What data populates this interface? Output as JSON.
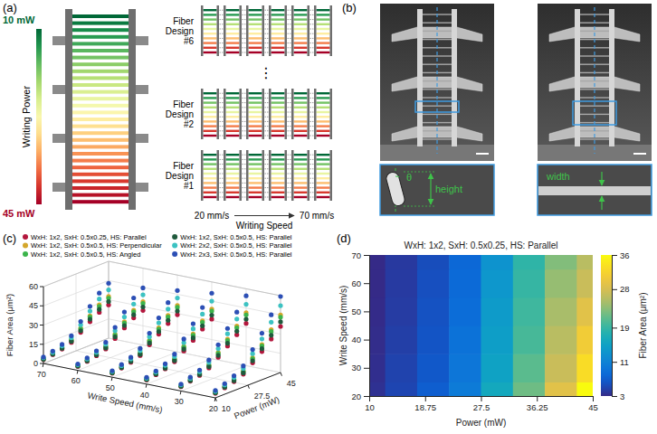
{
  "panel_a": {
    "label": "(a)",
    "power": {
      "title": "Writing Power",
      "range": [
        10,
        45
      ],
      "labels": [
        {
          "value": 10,
          "label": "10 mW"
        },
        {
          "value": 45,
          "label": "45 mW"
        }
      ]
    },
    "designs": [
      "Fiber Design #6",
      "Fiber Design #2",
      "Fiber Design #1"
    ],
    "ellipsis": "⋮",
    "speed": {
      "title": "Writing Speed",
      "labels": [
        {
          "value": 20,
          "label": "20 mm/s"
        },
        {
          "value": 70,
          "label": "70 mm/s"
        }
      ]
    }
  },
  "panel_b": {
    "label": "(b)",
    "labels": {
      "height": "height",
      "angle": "θ",
      "width": "width"
    }
  },
  "chart_data": [
    {
      "type": "scatter3d",
      "panel_label": "(c)",
      "x_label": "Write Speed (mm/s)",
      "y_label": "Power (mW)",
      "z_label": "Fiber Area (μm²)",
      "xlim": [
        70,
        20
      ],
      "xticks": [
        70,
        60,
        50,
        40,
        30,
        20
      ],
      "ylim": [
        10,
        45
      ],
      "yticks": [
        10,
        27.5,
        45
      ],
      "zlim": [
        0,
        60
      ],
      "zticks": [
        0,
        15,
        30,
        45,
        60
      ],
      "grid": true,
      "legend": "top",
      "marker": "circle",
      "x": [
        20,
        20,
        20,
        20,
        20,
        20,
        20,
        20,
        30,
        30,
        30,
        30,
        30,
        30,
        30,
        30,
        40,
        40,
        40,
        40,
        40,
        40,
        40,
        40,
        50,
        50,
        50,
        50,
        50,
        50,
        50,
        50,
        60,
        60,
        60,
        60,
        60,
        60,
        60,
        60,
        70,
        70,
        70,
        70,
        70,
        70,
        70,
        70
      ],
      "y": [
        10,
        15,
        20,
        25,
        30,
        35,
        40,
        45,
        10,
        15,
        20,
        25,
        30,
        35,
        40,
        45,
        10,
        15,
        20,
        25,
        30,
        35,
        40,
        45,
        10,
        15,
        20,
        25,
        30,
        35,
        40,
        45,
        10,
        15,
        20,
        25,
        30,
        35,
        40,
        45,
        10,
        15,
        20,
        25,
        30,
        35,
        40,
        45
      ],
      "series": [
        {
          "name": "WxH: 1x2, SxH: 0.5x0.25, HS: Parallel",
          "color": "#b3173d",
          "z": [
            3.5,
            5.0,
            7.0,
            10.0,
            16.0,
            22.0,
            29.0,
            36.0,
            3.3,
            4.8,
            6.5,
            9.5,
            15.0,
            21.0,
            27.0,
            33.0,
            3.2,
            4.5,
            6.2,
            9.0,
            14.5,
            20.0,
            26.0,
            31.0,
            3.1,
            4.3,
            6.0,
            8.5,
            14.0,
            19.5,
            25.0,
            29.0,
            3.0,
            4.2,
            5.8,
            8.2,
            13.5,
            19.0,
            24.0,
            27.0,
            3.0,
            4.1,
            5.6,
            8.0,
            13.0,
            18.5,
            23.0,
            26.0
          ]
        },
        {
          "name": "WxH: 1x2, SxH: 0.5x0.5, HS: Perpendicular",
          "color": "#d4a72c",
          "z": [
            4.4,
            6.3,
            8.8,
            12.5,
            20.0,
            27.5,
            36.3,
            45.0,
            4.1,
            6.0,
            8.1,
            11.9,
            18.8,
            26.3,
            33.8,
            41.3,
            4.0,
            5.6,
            7.8,
            11.3,
            18.1,
            25.0,
            32.5,
            38.8,
            3.9,
            5.4,
            7.5,
            10.6,
            17.5,
            24.4,
            31.3,
            36.3,
            3.8,
            5.3,
            7.3,
            10.3,
            16.9,
            23.8,
            30.0,
            33.8,
            3.8,
            5.1,
            7.0,
            10.0,
            16.3,
            23.1,
            28.8,
            32.5
          ]
        },
        {
          "name": "WxH: 1x2, SxH: 0.5x0.5, HS: Angled",
          "color": "#3cb44b",
          "z": [
            4.2,
            6.0,
            8.4,
            12.0,
            19.2,
            26.4,
            34.8,
            43.2,
            4.0,
            5.8,
            7.8,
            11.4,
            18.0,
            25.2,
            32.4,
            39.6,
            3.8,
            5.4,
            7.4,
            10.8,
            17.4,
            24.0,
            31.2,
            37.2,
            3.7,
            5.2,
            7.2,
            10.2,
            16.8,
            23.4,
            30.0,
            34.8,
            3.6,
            5.0,
            7.0,
            9.8,
            16.2,
            22.8,
            28.8,
            32.4,
            3.6,
            4.9,
            6.7,
            9.6,
            15.6,
            22.2,
            27.6,
            31.2
          ]
        },
        {
          "name": "WxH: 1x2, SxH: 0.5x0.5, HS: Parallel",
          "color": "#1f5a3c",
          "z": [
            3.9,
            5.5,
            7.7,
            11.0,
            17.6,
            24.2,
            31.9,
            39.6,
            3.6,
            5.3,
            7.2,
            10.5,
            16.5,
            23.1,
            29.7,
            36.3,
            3.5,
            5.0,
            6.8,
            9.9,
            16.0,
            22.0,
            28.6,
            34.1,
            3.4,
            4.7,
            6.6,
            9.4,
            15.4,
            21.5,
            27.5,
            31.9,
            3.3,
            4.6,
            6.4,
            9.0,
            14.9,
            20.9,
            26.4,
            29.7,
            3.3,
            4.5,
            6.2,
            8.8,
            14.3,
            20.4,
            25.3,
            28.6
          ]
        },
        {
          "name": "WxH: 2x2, SxH: 0.5x0.5, HS: Parallel",
          "color": "#3cc2c2",
          "z": [
            5.1,
            7.3,
            10.2,
            14.5,
            23.2,
            31.9,
            42.1,
            52.2,
            4.8,
            7.0,
            9.4,
            13.8,
            21.8,
            30.5,
            39.2,
            47.9,
            4.6,
            6.5,
            9.0,
            13.1,
            21.0,
            29.0,
            37.7,
            45.0,
            4.5,
            6.2,
            8.7,
            12.3,
            20.3,
            28.3,
            36.3,
            42.1,
            4.4,
            6.1,
            8.4,
            11.9,
            19.6,
            27.6,
            34.8,
            39.2,
            4.4,
            5.9,
            8.1,
            11.6,
            18.9,
            26.8,
            33.4,
            37.7
          ]
        },
        {
          "name": "WxH: 2x3, SxH: 0.5x0.5, HS: Parallel",
          "color": "#2c4fb5",
          "z": [
            5.8,
            8.3,
            11.6,
            16.5,
            26.4,
            36.3,
            47.9,
            59.4,
            5.4,
            7.9,
            10.7,
            15.7,
            24.8,
            34.7,
            44.6,
            54.5,
            5.3,
            7.4,
            10.2,
            14.9,
            23.9,
            33.0,
            42.9,
            51.2,
            5.1,
            7.1,
            9.9,
            14.0,
            23.1,
            32.2,
            41.3,
            47.9,
            5.0,
            6.9,
            9.6,
            13.5,
            22.3,
            31.4,
            39.6,
            44.6,
            5.0,
            6.8,
            9.2,
            13.2,
            21.5,
            30.5,
            38.0,
            42.9
          ]
        }
      ]
    },
    {
      "type": "heatmap",
      "panel_label": "(d)",
      "title": "WxH: 1x2, SxH: 0.5x0.25, HS: Parallel",
      "x_label": "Power (mW)",
      "y_label": "Write Speed (mm/s)",
      "x": [
        10,
        15,
        20,
        25,
        30,
        35,
        40,
        45
      ],
      "y": [
        20,
        30,
        40,
        50,
        60,
        70
      ],
      "cells": [
        [
          3.5,
          5.0,
          7.0,
          10.0,
          16.0,
          22.0,
          29.0,
          36.0
        ],
        [
          3.3,
          4.8,
          6.5,
          9.5,
          15.0,
          21.0,
          27.0,
          33.0
        ],
        [
          3.2,
          4.5,
          6.2,
          9.0,
          14.5,
          20.0,
          26.0,
          31.0
        ],
        [
          3.1,
          4.3,
          6.0,
          8.5,
          14.0,
          19.5,
          25.0,
          29.0
        ],
        [
          3.0,
          4.2,
          5.8,
          8.2,
          13.5,
          19.0,
          24.0,
          27.0
        ],
        [
          3.0,
          4.1,
          5.6,
          8.0,
          13.0,
          18.5,
          23.0,
          26.0
        ]
      ],
      "xlim": [
        10,
        45
      ],
      "xticks": [
        10,
        18.75,
        27.5,
        36.25,
        45
      ],
      "ylim": [
        20,
        70
      ],
      "yticks": [
        20,
        30,
        40,
        50,
        60,
        70
      ],
      "colorbar": {
        "label": "Fiber Area (μm²)",
        "range": [
          3,
          36
        ],
        "ticks": [
          3,
          11,
          19,
          28,
          36
        ]
      }
    }
  ]
}
